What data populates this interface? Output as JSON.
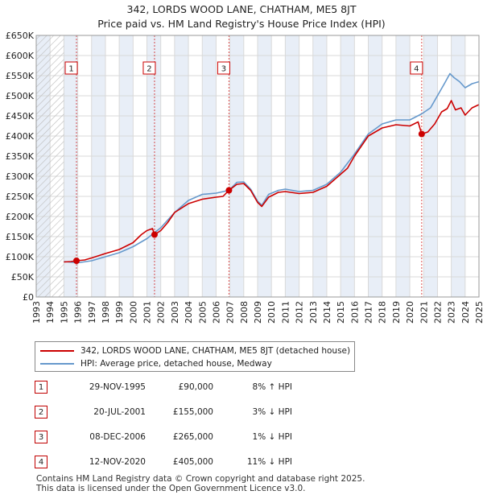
{
  "title_line1": "342, LORDS WOOD LANE, CHATHAM, ME5 8JT",
  "title_line2": "Price paid vs. HM Land Registry's House Price Index (HPI)",
  "colors": {
    "property": "#cc0000",
    "hpi": "#6699cc",
    "grid": "#d9d9d9",
    "shade": "#e8eef7",
    "marker": "#cc0000"
  },
  "chart_data": {
    "type": "line",
    "title": "Price paid vs. HM Land Registry's House Price Index (HPI)",
    "xlabel": "",
    "ylabel": "",
    "xlim": [
      1993,
      2025
    ],
    "ylim": [
      0,
      650000
    ],
    "y_ticks": [
      0,
      50000,
      100000,
      150000,
      200000,
      250000,
      300000,
      350000,
      400000,
      450000,
      500000,
      550000,
      600000,
      650000
    ],
    "y_tick_labels": [
      "£0",
      "£50K",
      "£100K",
      "£150K",
      "£200K",
      "£250K",
      "£300K",
      "£350K",
      "£400K",
      "£450K",
      "£500K",
      "£550K",
      "£600K",
      "£650K"
    ],
    "x_ticks": [
      1993,
      1994,
      1995,
      1996,
      1997,
      1998,
      1999,
      2000,
      2001,
      2002,
      2003,
      2004,
      2005,
      2006,
      2007,
      2008,
      2009,
      2010,
      2011,
      2012,
      2013,
      2014,
      2015,
      2016,
      2017,
      2018,
      2019,
      2020,
      2021,
      2022,
      2023,
      2024,
      2025
    ],
    "x_tick_labels": [
      "1993",
      "1994",
      "1995",
      "1996",
      "1997",
      "1998",
      "1999",
      "2000",
      "2001",
      "2002",
      "2003",
      "2004",
      "2005",
      "2006",
      "2007",
      "2008",
      "2009",
      "2010",
      "2011",
      "2012",
      "2013",
      "2014",
      "2015",
      "2016",
      "2017",
      "2018",
      "2019",
      "2020",
      "2021",
      "2022",
      "2023",
      "2024",
      "2025"
    ],
    "shaded_years": [
      1993,
      1994,
      1995,
      1996,
      1997,
      1998,
      1999,
      2000,
      2001,
      2002,
      2003,
      2004,
      2005,
      2006,
      2007,
      2008,
      2009,
      2010,
      2011,
      2012,
      2013,
      2014,
      2015,
      2016,
      2017,
      2018,
      2019,
      2020,
      2021,
      2022,
      2023,
      2024
    ],
    "series": [
      {
        "name": "342, LORDS WOOD LANE, CHATHAM, ME5 8JT (detached house)",
        "color": "#cc0000",
        "points": [
          [
            1995.0,
            87000
          ],
          [
            1995.5,
            88000
          ],
          [
            1995.91,
            90000
          ],
          [
            1996.5,
            92000
          ],
          [
            1997.0,
            97000
          ],
          [
            1998.0,
            108000
          ],
          [
            1999.0,
            118000
          ],
          [
            2000.0,
            135000
          ],
          [
            2000.6,
            155000
          ],
          [
            2001.0,
            165000
          ],
          [
            2001.4,
            170000
          ],
          [
            2001.55,
            155000
          ],
          [
            2002.0,
            165000
          ],
          [
            2002.5,
            185000
          ],
          [
            2003.0,
            210000
          ],
          [
            2004.0,
            232000
          ],
          [
            2005.0,
            243000
          ],
          [
            2006.0,
            248000
          ],
          [
            2006.5,
            250000
          ],
          [
            2006.93,
            265000
          ],
          [
            2007.5,
            280000
          ],
          [
            2008.0,
            282000
          ],
          [
            2008.5,
            265000
          ],
          [
            2009.0,
            235000
          ],
          [
            2009.3,
            225000
          ],
          [
            2009.8,
            248000
          ],
          [
            2010.5,
            260000
          ],
          [
            2011.0,
            262000
          ],
          [
            2012.0,
            257000
          ],
          [
            2013.0,
            260000
          ],
          [
            2014.0,
            275000
          ],
          [
            2015.0,
            305000
          ],
          [
            2015.5,
            320000
          ],
          [
            2016.0,
            350000
          ],
          [
            2016.5,
            375000
          ],
          [
            2017.0,
            400000
          ],
          [
            2018.0,
            420000
          ],
          [
            2019.0,
            428000
          ],
          [
            2020.0,
            425000
          ],
          [
            2020.6,
            435000
          ],
          [
            2020.86,
            405000
          ],
          [
            2021.3,
            410000
          ],
          [
            2021.8,
            430000
          ],
          [
            2022.3,
            460000
          ],
          [
            2022.7,
            468000
          ],
          [
            2023.0,
            488000
          ],
          [
            2023.3,
            465000
          ],
          [
            2023.7,
            470000
          ],
          [
            2024.0,
            452000
          ],
          [
            2024.5,
            470000
          ],
          [
            2025.0,
            478000
          ]
        ]
      },
      {
        "name": "HPI: Average price, detached house, Medway",
        "color": "#6699cc",
        "points": [
          [
            1995.0,
            88000
          ],
          [
            1996.0,
            85000
          ],
          [
            1997.0,
            90000
          ],
          [
            1998.0,
            100000
          ],
          [
            1999.0,
            110000
          ],
          [
            2000.0,
            125000
          ],
          [
            2001.0,
            145000
          ],
          [
            2001.55,
            160000
          ],
          [
            2002.0,
            172000
          ],
          [
            2003.0,
            210000
          ],
          [
            2004.0,
            240000
          ],
          [
            2005.0,
            255000
          ],
          [
            2006.0,
            258000
          ],
          [
            2006.93,
            265000
          ],
          [
            2007.5,
            285000
          ],
          [
            2008.0,
            286000
          ],
          [
            2008.5,
            268000
          ],
          [
            2009.0,
            238000
          ],
          [
            2009.3,
            228000
          ],
          [
            2009.8,
            255000
          ],
          [
            2010.5,
            265000
          ],
          [
            2011.0,
            268000
          ],
          [
            2012.0,
            262000
          ],
          [
            2013.0,
            265000
          ],
          [
            2014.0,
            280000
          ],
          [
            2015.0,
            310000
          ],
          [
            2016.0,
            355000
          ],
          [
            2017.0,
            405000
          ],
          [
            2018.0,
            430000
          ],
          [
            2019.0,
            440000
          ],
          [
            2020.0,
            440000
          ],
          [
            2020.86,
            455000
          ],
          [
            2021.5,
            470000
          ],
          [
            2022.0,
            500000
          ],
          [
            2022.5,
            530000
          ],
          [
            2022.9,
            555000
          ],
          [
            2023.2,
            545000
          ],
          [
            2023.6,
            535000
          ],
          [
            2024.0,
            520000
          ],
          [
            2024.5,
            530000
          ],
          [
            2025.0,
            535000
          ]
        ]
      }
    ],
    "sales": [
      {
        "label": "1",
        "x": 1995.91,
        "price": 90000
      },
      {
        "label": "2",
        "x": 2001.55,
        "price": 155000
      },
      {
        "label": "3",
        "x": 2006.93,
        "price": 265000
      },
      {
        "label": "4",
        "x": 2020.86,
        "price": 405000
      }
    ]
  },
  "legend": [
    {
      "label": "342, LORDS WOOD LANE, CHATHAM, ME5 8JT (detached house)",
      "color": "#cc0000"
    },
    {
      "label": "HPI: Average price, detached house, Medway",
      "color": "#6699cc"
    }
  ],
  "transactions": [
    {
      "num": "1",
      "date": "29-NOV-1995",
      "price": "£90,000",
      "hpi": "8% ↑ HPI"
    },
    {
      "num": "2",
      "date": "20-JUL-2001",
      "price": "£155,000",
      "hpi": "3% ↓ HPI"
    },
    {
      "num": "3",
      "date": "08-DEC-2006",
      "price": "£265,000",
      "hpi": "1% ↓ HPI"
    },
    {
      "num": "4",
      "date": "12-NOV-2020",
      "price": "£405,000",
      "hpi": "11% ↓ HPI"
    }
  ],
  "footer_line1": "Contains HM Land Registry data © Crown copyright and database right 2025.",
  "footer_line2": "This data is licensed under the Open Government Licence v3.0."
}
